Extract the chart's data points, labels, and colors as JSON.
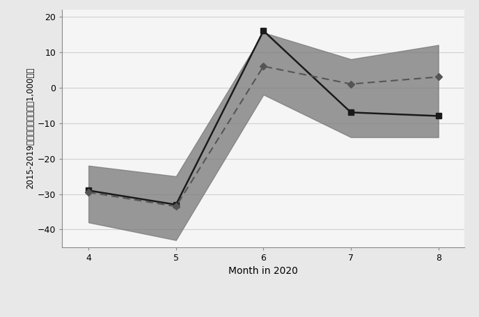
{
  "months": [
    4,
    5,
    6,
    7,
    8
  ],
  "early_line": [
    -29,
    -33,
    16,
    -7,
    -8
  ],
  "other_line": [
    -29.5,
    -33.5,
    6,
    1,
    3
  ],
  "ci_upper": [
    -22,
    -25,
    15.5,
    8,
    12
  ],
  "ci_lower": [
    -38,
    -43,
    -2,
    -14,
    -14
  ],
  "ci_color": "#787878",
  "ci_alpha": 0.75,
  "early_color": "#1a1a1a",
  "other_color": "#555555",
  "ylim": [
    -45,
    22
  ],
  "yticks": [
    -40,
    -30,
    -20,
    -10,
    0,
    10,
    20
  ],
  "xlabel": "Month in 2020",
  "ylabel": "2015-2019年平均からの乖離（1,000円）",
  "bg_color": "#e8e8e8",
  "plot_bg_color": "#f5f5f5"
}
